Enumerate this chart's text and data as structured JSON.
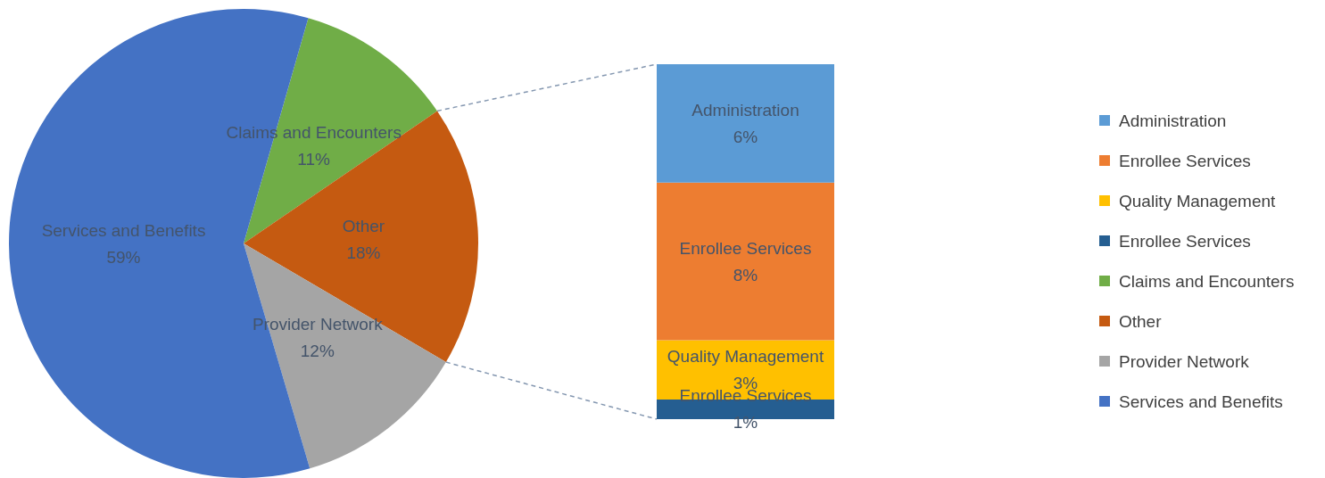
{
  "chart_data": [
    {
      "type": "pie",
      "categories": [
        "Claims and Encounters",
        "Other",
        "Provider Network",
        "Services and Benefits"
      ],
      "values": [
        11,
        18,
        12,
        59
      ],
      "value_labels": [
        "11%",
        "18%",
        "12%",
        "59%"
      ],
      "colors": [
        "#70ad47",
        "#c55a11",
        "#a5a5a5",
        "#4472c4"
      ],
      "legend": "right"
    },
    {
      "type": "bar",
      "stacked": true,
      "categories": [
        null
      ],
      "legend": "right",
      "series": [
        {
          "name": "Enrollee Services",
          "color": "#255e91",
          "values": [
            1
          ],
          "value_labels": [
            "1%"
          ]
        },
        {
          "name": "Quality Management",
          "color": "#ffc000",
          "values": [
            3
          ],
          "value_labels": [
            "3%"
          ]
        },
        {
          "name": "Enrollee Services",
          "color": "#ed7d31",
          "values": [
            8
          ],
          "value_labels": [
            "8%"
          ]
        },
        {
          "name": "Administration",
          "color": "#5b9bd5",
          "values": [
            6
          ],
          "value_labels": [
            "6%"
          ]
        }
      ]
    }
  ]
}
